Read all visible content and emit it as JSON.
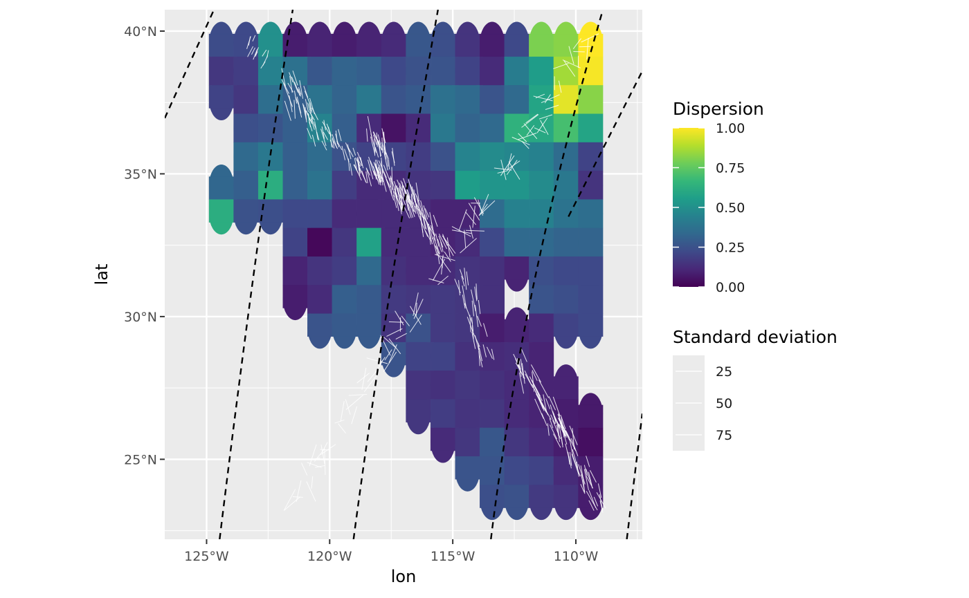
{
  "chart_data": {
    "type": "heatmap",
    "subtype": "map-grid-with-stress-orientation-segments",
    "xlabel": "lon",
    "ylabel": "lat",
    "xlim": [
      -126.7,
      -107.3
    ],
    "ylim": [
      22.2,
      40.75
    ],
    "x_ticks": [
      -125,
      -120,
      -115,
      -110
    ],
    "x_tick_labels": [
      "125°W",
      "120°W",
      "115°W",
      "110°W"
    ],
    "y_ticks": [
      25,
      30,
      35,
      40
    ],
    "y_tick_labels": [
      "25°N",
      "30°N",
      "35°N",
      "40°N"
    ],
    "panel_background": "#EBEBEB",
    "grid": true,
    "cell_size_deg": 1.0,
    "x_center_origin": -124.4,
    "y_center_origin": 39.6,
    "cells_by_row": [
      [
        [
          0,
          0.23
        ],
        [
          1,
          0.22
        ],
        [
          2,
          0.5
        ],
        [
          3,
          0.08
        ],
        [
          4,
          0.1
        ],
        [
          5,
          0.08
        ],
        [
          6,
          0.1
        ],
        [
          7,
          0.12
        ],
        [
          8,
          0.27
        ],
        [
          9,
          0.24
        ],
        [
          10,
          0.15
        ],
        [
          11,
          0.08
        ],
        [
          12,
          0.22
        ],
        [
          13,
          0.8
        ],
        [
          14,
          0.82
        ],
        [
          15,
          1.0
        ]
      ],
      [
        [
          0,
          0.16
        ],
        [
          1,
          0.18
        ],
        [
          2,
          0.44
        ],
        [
          3,
          0.37
        ],
        [
          4,
          0.27
        ],
        [
          5,
          0.32
        ],
        [
          6,
          0.3
        ],
        [
          7,
          0.22
        ],
        [
          8,
          0.25
        ],
        [
          9,
          0.26
        ],
        [
          10,
          0.2
        ],
        [
          11,
          0.12
        ],
        [
          12,
          0.42
        ],
        [
          13,
          0.55
        ],
        [
          14,
          0.86
        ],
        [
          15,
          0.99
        ]
      ],
      [
        [
          0,
          0.2
        ],
        [
          1,
          0.16
        ],
        [
          2,
          0.36
        ],
        [
          3,
          0.3
        ],
        [
          4,
          0.38
        ],
        [
          5,
          0.32
        ],
        [
          6,
          0.4
        ],
        [
          7,
          0.26
        ],
        [
          8,
          0.28
        ],
        [
          9,
          0.37
        ],
        [
          10,
          0.34
        ],
        [
          11,
          0.26
        ],
        [
          12,
          0.34
        ],
        [
          13,
          0.58
        ],
        [
          14,
          0.96
        ],
        [
          15,
          0.82
        ]
      ],
      [
        [
          1,
          0.24
        ],
        [
          2,
          0.26
        ],
        [
          3,
          0.3
        ],
        [
          4,
          0.45
        ],
        [
          5,
          0.3
        ],
        [
          6,
          0.12
        ],
        [
          7,
          0.05
        ],
        [
          8,
          0.12
        ],
        [
          9,
          0.4
        ],
        [
          10,
          0.32
        ],
        [
          11,
          0.34
        ],
        [
          12,
          0.64
        ],
        [
          13,
          0.6
        ],
        [
          14,
          0.7
        ],
        [
          15,
          0.58
        ]
      ],
      [
        [
          1,
          0.34
        ],
        [
          2,
          0.4
        ],
        [
          3,
          0.3
        ],
        [
          4,
          0.35
        ],
        [
          5,
          0.25
        ],
        [
          6,
          0.2
        ],
        [
          7,
          0.2
        ],
        [
          8,
          0.18
        ],
        [
          9,
          0.25
        ],
        [
          10,
          0.45
        ],
        [
          11,
          0.48
        ],
        [
          12,
          0.46
        ],
        [
          13,
          0.44
        ],
        [
          14,
          0.35
        ],
        [
          15,
          0.2
        ]
      ],
      [
        [
          0,
          0.33
        ],
        [
          1,
          0.3
        ],
        [
          2,
          0.62
        ],
        [
          3,
          0.3
        ],
        [
          4,
          0.38
        ],
        [
          5,
          0.18
        ],
        [
          6,
          0.12
        ],
        [
          7,
          0.12
        ],
        [
          8,
          0.15
        ],
        [
          9,
          0.16
        ],
        [
          10,
          0.55
        ],
        [
          11,
          0.52
        ],
        [
          12,
          0.52
        ],
        [
          13,
          0.48
        ],
        [
          14,
          0.4
        ],
        [
          15,
          0.15
        ]
      ],
      [
        [
          0,
          0.62
        ],
        [
          1,
          0.25
        ],
        [
          2,
          0.24
        ],
        [
          3,
          0.22
        ],
        [
          4,
          0.22
        ],
        [
          5,
          0.12
        ],
        [
          6,
          0.12
        ],
        [
          7,
          0.12
        ],
        [
          8,
          0.12
        ],
        [
          9,
          0.1
        ],
        [
          10,
          0.1
        ],
        [
          11,
          0.35
        ],
        [
          12,
          0.44
        ],
        [
          13,
          0.44
        ],
        [
          14,
          0.38
        ],
        [
          15,
          0.36
        ]
      ],
      [
        [
          3,
          0.2
        ],
        [
          4,
          0.02
        ],
        [
          5,
          0.16
        ],
        [
          6,
          0.57
        ],
        [
          7,
          0.12
        ],
        [
          8,
          0.12
        ],
        [
          9,
          0.1
        ],
        [
          10,
          0.12
        ],
        [
          11,
          0.22
        ],
        [
          12,
          0.34
        ],
        [
          13,
          0.34
        ],
        [
          14,
          0.32
        ],
        [
          15,
          0.32
        ]
      ],
      [
        [
          3,
          0.1
        ],
        [
          4,
          0.15
        ],
        [
          5,
          0.18
        ],
        [
          6,
          0.34
        ],
        [
          7,
          0.14
        ],
        [
          8,
          0.12
        ],
        [
          9,
          0.12
        ],
        [
          10,
          0.15
        ],
        [
          11,
          0.14
        ],
        [
          12,
          0.1
        ],
        [
          13,
          0.24
        ],
        [
          14,
          0.22
        ],
        [
          15,
          0.22
        ]
      ],
      [
        [
          3,
          0.08
        ],
        [
          4,
          0.12
        ],
        [
          5,
          0.3
        ],
        [
          6,
          0.28
        ],
        [
          7,
          0.17
        ],
        [
          8,
          0.16
        ],
        [
          9,
          0.17
        ],
        [
          10,
          0.16
        ],
        [
          11,
          0.14
        ],
        [
          13,
          0.26
        ],
        [
          14,
          0.24
        ],
        [
          15,
          0.22
        ]
      ],
      [
        [
          4,
          0.26
        ],
        [
          5,
          0.28
        ],
        [
          6,
          0.28
        ],
        [
          7,
          0.15
        ],
        [
          8,
          0.25
        ],
        [
          9,
          0.17
        ],
        [
          10,
          0.16
        ],
        [
          11,
          0.08
        ],
        [
          12,
          0.1
        ],
        [
          13,
          0.12
        ],
        [
          14,
          0.2
        ],
        [
          15,
          0.22
        ]
      ],
      [
        [
          7,
          0.26
        ],
        [
          8,
          0.2
        ],
        [
          9,
          0.2
        ],
        [
          10,
          0.14
        ],
        [
          11,
          0.12
        ],
        [
          12,
          0.13
        ],
        [
          13,
          0.1
        ]
      ],
      [
        [
          8,
          0.15
        ],
        [
          9,
          0.14
        ],
        [
          10,
          0.16
        ],
        [
          11,
          0.14
        ],
        [
          12,
          0.12
        ],
        [
          13,
          0.1
        ],
        [
          14,
          0.1
        ]
      ],
      [
        [
          8,
          0.16
        ],
        [
          9,
          0.18
        ],
        [
          10,
          0.15
        ],
        [
          11,
          0.16
        ],
        [
          12,
          0.12
        ],
        [
          13,
          0.1
        ],
        [
          14,
          0.08
        ],
        [
          15,
          0.07
        ]
      ],
      [
        [
          9,
          0.12
        ],
        [
          10,
          0.16
        ],
        [
          11,
          0.27
        ],
        [
          12,
          0.16
        ],
        [
          13,
          0.12
        ],
        [
          14,
          0.08
        ],
        [
          15,
          0.04
        ]
      ],
      [
        [
          10,
          0.26
        ],
        [
          11,
          0.26
        ],
        [
          12,
          0.22
        ],
        [
          13,
          0.2
        ],
        [
          14,
          0.12
        ],
        [
          15,
          0.08
        ]
      ],
      [
        [
          11,
          0.24
        ],
        [
          12,
          0.25
        ],
        [
          13,
          0.17
        ],
        [
          14,
          0.15
        ],
        [
          15,
          0.08
        ]
      ]
    ],
    "graticule_lines": [
      {
        "lon": [
          -124.47,
          -122.87,
          -121.5
        ],
        "lat": [
          22.2,
          33.5,
          40.75
        ]
      },
      {
        "lon": [
          -119.03,
          -117.84,
          -115.6
        ],
        "lat": [
          22.2,
          30.0,
          40.75
        ]
      },
      {
        "lon": [
          -113.45,
          -112.2,
          -108.9
        ],
        "lat": [
          22.2,
          31.0,
          40.75
        ]
      },
      {
        "lon": [
          -107.93,
          -107.3
        ],
        "lat": [
          22.2,
          26.6
        ]
      },
      {
        "lon": [
          -126.7,
          -124.7
        ],
        "lat": [
          36.95,
          40.75
        ]
      },
      {
        "lon": [
          -110.3,
          -107.3
        ],
        "lat": [
          33.5,
          38.6
        ]
      }
    ],
    "segment_clusters": [
      {
        "lon": [
          -121.7,
          -120.4
        ],
        "lat": [
          38.5,
          36.2
        ],
        "count": 34,
        "az": 160,
        "len": 0.55
      },
      {
        "lon": [
          -120.6,
          -118.2
        ],
        "lat": [
          36.6,
          35.0
        ],
        "count": 48,
        "az": 160,
        "len": 0.55
      },
      {
        "lon": [
          -118.4,
          -117.4
        ],
        "lat": [
          36.5,
          35.4
        ],
        "count": 24,
        "az": 165,
        "len": 0.7
      },
      {
        "lon": [
          -118.2,
          -116.6
        ],
        "lat": [
          35.2,
          33.8
        ],
        "count": 60,
        "az": 165,
        "len": 0.7
      },
      {
        "lon": [
          -116.8,
          -115.4
        ],
        "lat": [
          34.4,
          32.3
        ],
        "count": 42,
        "az": 160,
        "len": 0.7
      },
      {
        "lon": [
          -114.6,
          -113.6
        ],
        "lat": [
          31.5,
          28.4
        ],
        "count": 30,
        "az": 165,
        "len": 0.7
      },
      {
        "lon": [
          -112.2,
          -110.6
        ],
        "lat": [
          28.4,
          25.8
        ],
        "count": 40,
        "az": 160,
        "len": 0.7
      },
      {
        "lon": [
          -111.0,
          -109.0
        ],
        "lat": [
          26.6,
          23.4
        ],
        "count": 50,
        "az": 160,
        "len": 0.7
      },
      {
        "lon": [
          -121.6,
          -121.6
        ],
        "lat": [
          39.6,
          37.4
        ],
        "count": 6,
        "az": 170,
        "len": 0.8
      },
      {
        "lon": [
          -123.2,
          -122.7
        ],
        "lat": [
          39.6,
          38.9
        ],
        "count": 12,
        "az": 25,
        "len": 0.4
      },
      {
        "lon": [
          -121.5,
          -109.5
        ],
        "lat": [
          23.5,
          39.7
        ],
        "count": 110,
        "az": 30,
        "len": 0.75
      }
    ],
    "legends": [
      {
        "title": "Dispersion",
        "type": "colorbar",
        "palette": "viridis",
        "range": [
          0,
          1
        ],
        "tick_values": [
          1.0,
          0.75,
          0.5,
          0.25,
          0.0
        ],
        "labels": [
          "1.00",
          "0.75",
          "0.50",
          "0.25",
          "0.00"
        ],
        "colors": [
          "#440154",
          "#482878",
          "#3E4A89",
          "#31688E",
          "#26828E",
          "#1F9E89",
          "#35B779",
          "#6DCD59",
          "#B4DE2C",
          "#FDE725"
        ]
      },
      {
        "title": "Standard deviation",
        "type": "size",
        "labels": [
          "25",
          "50",
          "75"
        ]
      }
    ]
  }
}
